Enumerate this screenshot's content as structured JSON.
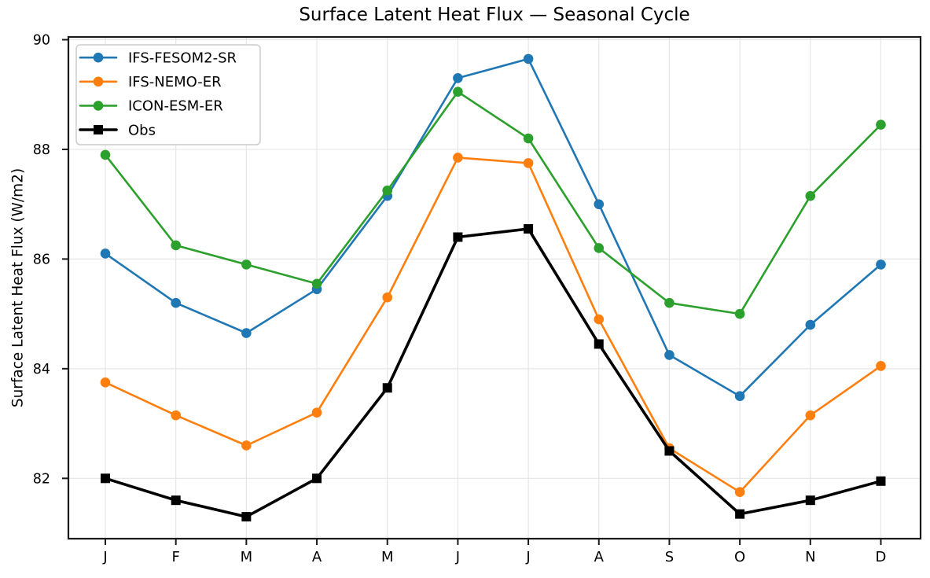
{
  "chart_data": {
    "type": "line",
    "title": "Surface Latent Heat Flux — Seasonal Cycle",
    "ylabel": "Surface Latent Heat Flux (W/m2)",
    "xlabel": "",
    "categories": [
      "J",
      "F",
      "M",
      "A",
      "M",
      "J",
      "J",
      "A",
      "S",
      "O",
      "N",
      "D"
    ],
    "yticks": [
      82,
      84,
      86,
      88,
      90
    ],
    "ylim": [
      80.9,
      90.05
    ],
    "grid": true,
    "legend_position": "upper-left",
    "colors": {
      "background": "#ffffff",
      "grid": "#e6e6e6",
      "axis": "#1a1a1a",
      "text": "#000000",
      "legend_border": "#cccccc"
    },
    "series": [
      {
        "name": "IFS-FESOM2-SR",
        "color": "#1f77b4",
        "marker": "circle",
        "values": [
          86.1,
          85.2,
          84.65,
          85.45,
          87.15,
          89.3,
          89.65,
          87.0,
          84.25,
          83.5,
          84.8,
          85.9
        ]
      },
      {
        "name": "IFS-NEMO-ER",
        "color": "#ff7f0e",
        "marker": "circle",
        "values": [
          83.75,
          83.15,
          82.6,
          83.2,
          85.3,
          87.85,
          87.75,
          84.9,
          82.55,
          81.75,
          83.15,
          84.05
        ]
      },
      {
        "name": "ICON-ESM-ER",
        "color": "#2ca02c",
        "marker": "circle",
        "values": [
          87.9,
          86.25,
          85.9,
          85.55,
          87.25,
          89.05,
          88.2,
          86.2,
          85.2,
          85.0,
          87.15,
          88.45
        ]
      },
      {
        "name": "Obs",
        "color": "#000000",
        "marker": "square",
        "values": [
          82.0,
          81.6,
          81.3,
          82.0,
          83.65,
          86.4,
          86.55,
          84.45,
          82.5,
          81.35,
          81.6,
          81.95
        ]
      }
    ]
  }
}
